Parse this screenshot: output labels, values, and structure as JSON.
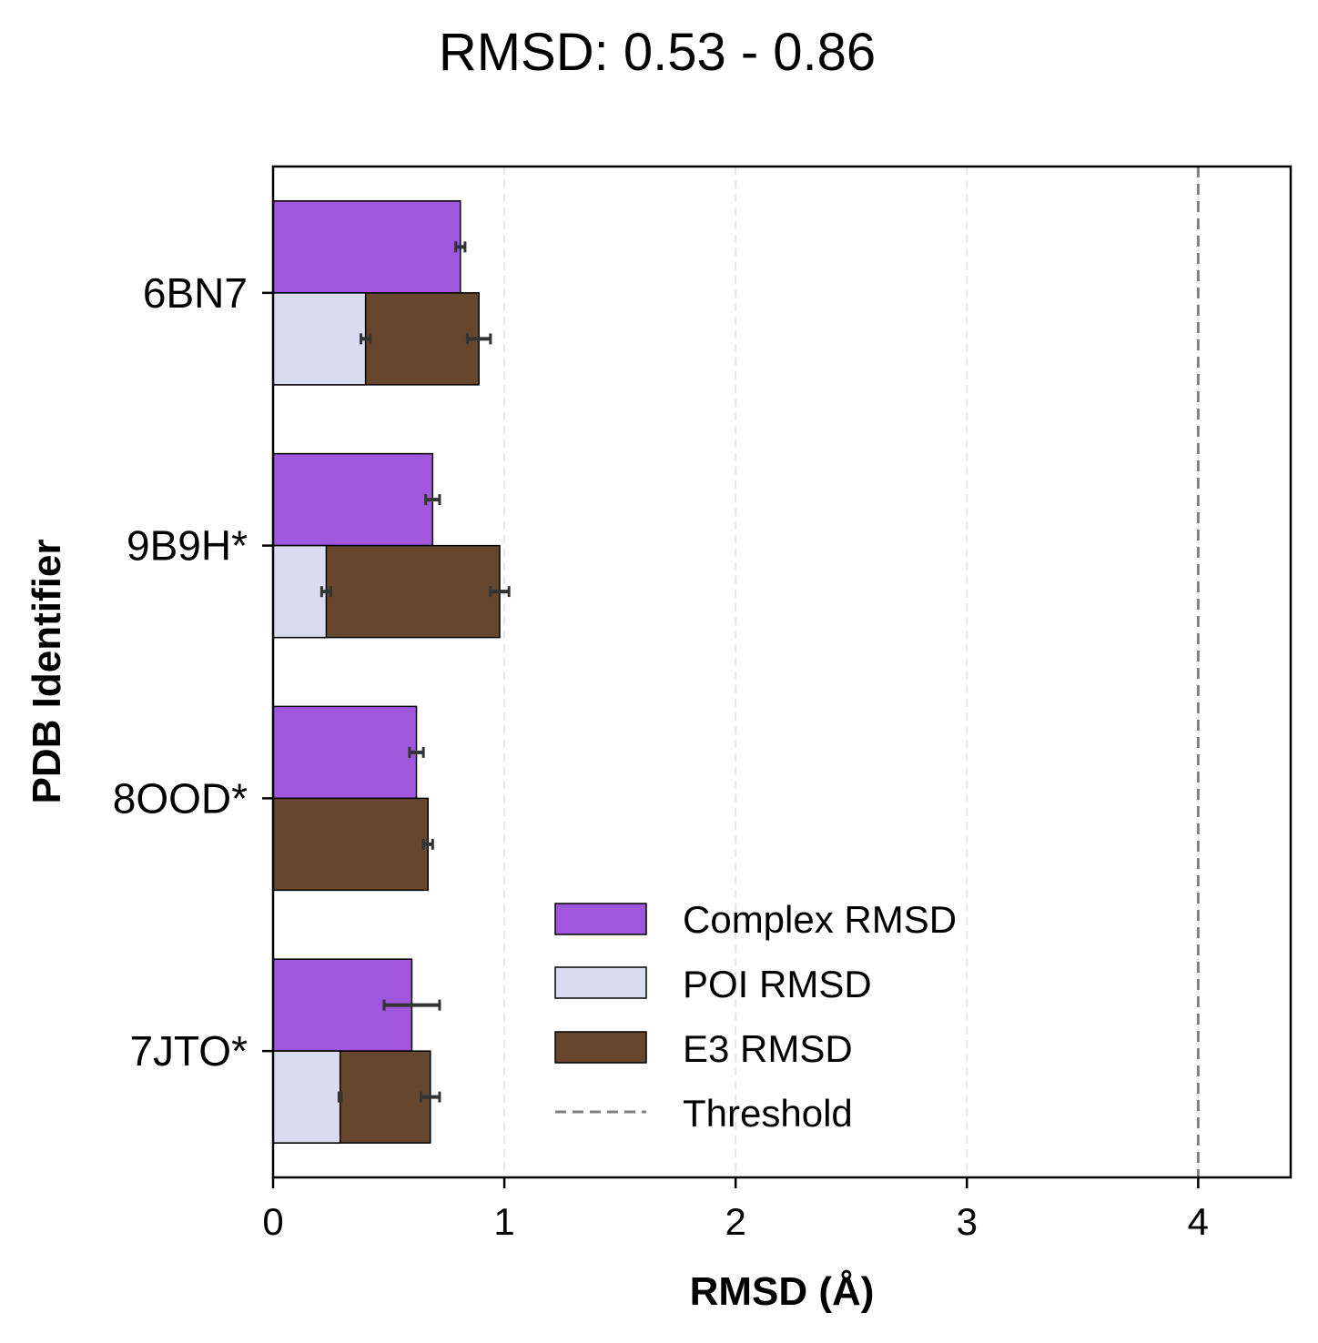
{
  "chart_data": {
    "type": "bar",
    "orientation": "horizontal",
    "title": "RMSD: 0.53 - 0.86",
    "xlabel": "RMSD (Å)",
    "ylabel": "PDB Identifier",
    "xlim": [
      0,
      4.4
    ],
    "xticks": [
      "0",
      "1",
      "2",
      "3",
      "4"
    ],
    "grid": "x-dashed",
    "legend_position": "lower-right",
    "categories": [
      "6BN7",
      "9B9H*",
      "8OOD*",
      "7JTO*"
    ],
    "series": [
      {
        "name": "Complex RMSD",
        "color": "#a057dd",
        "values": [
          0.81,
          0.69,
          0.62,
          0.6
        ],
        "errors": [
          0.02,
          0.03,
          0.03,
          0.12
        ]
      },
      {
        "name": "POI RMSD",
        "color": "#d9dcf1",
        "values": [
          0.4,
          0.23,
          0.0,
          0.29
        ],
        "errors": [
          0.02,
          0.02,
          0.0,
          0.005
        ]
      },
      {
        "name": "E3 RMSD",
        "color": "#67462e",
        "values": [
          0.89,
          0.98,
          0.67,
          0.68
        ],
        "errors": [
          0.05,
          0.04,
          0.02,
          0.04
        ]
      }
    ],
    "threshold": {
      "name": "Threshold",
      "value": 4,
      "color": "#808080",
      "style": "dashed"
    }
  }
}
